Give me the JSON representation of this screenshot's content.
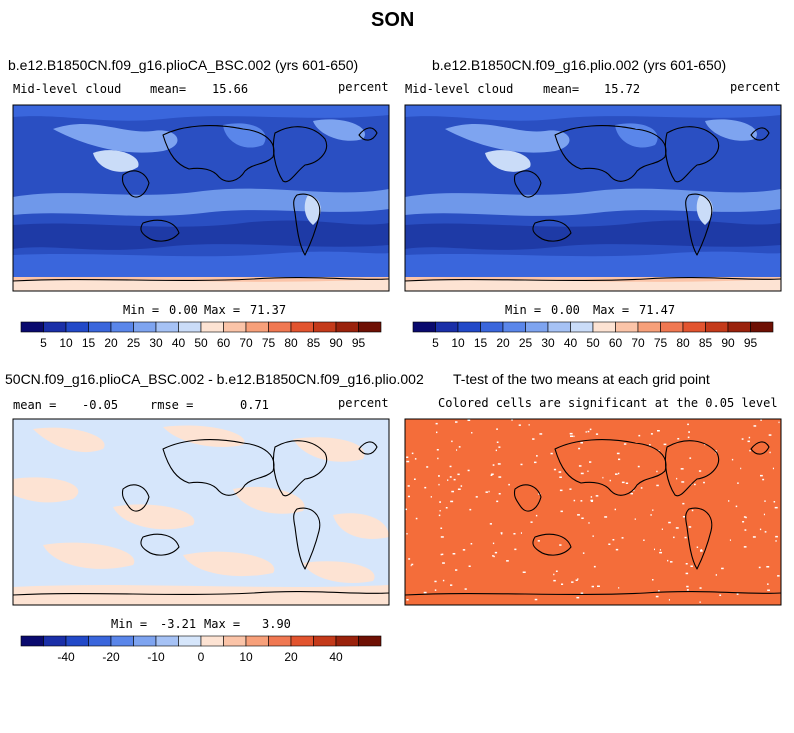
{
  "season": "SON",
  "panels": {
    "top_left": {
      "title": "b.e12.B1850CN.f09_g16.plioCA_BSC.002 (yrs 601-650)",
      "variable": "Mid-level cloud",
      "mean_label": "mean=",
      "mean_value": "15.66",
      "units": "percent",
      "min_label": "Min =",
      "min_value": "0.00",
      "max_label": "Max =",
      "max_value": "71.37"
    },
    "top_right": {
      "title": "b.e12.B1850CN.f09_g16.plio.002 (yrs 601-650)",
      "variable": "Mid-level cloud",
      "mean_label": "mean=",
      "mean_value": "15.72",
      "units": "percent",
      "min_label": "Min =",
      "min_value": "0.00",
      "max_label": "Max =",
      "max_value": "71.47"
    },
    "bottom_left": {
      "title": "50CN.f09_g16.plioCA_BSC.002 - b.e12.B1850CN.f09_g16.plio.002",
      "mean_label": "mean =",
      "mean_value": "-0.05",
      "rmse_label": "rmse =",
      "rmse_value": "0.71",
      "units": "percent",
      "min_label": "Min =",
      "min_value": "-3.21",
      "max_label": "Max =",
      "max_value": "3.90"
    },
    "bottom_right": {
      "title": "T-test of the two means at each grid point",
      "subtitle": "Colored cells are significant at the 0.05 level"
    }
  },
  "colorbars": {
    "abs": {
      "colors": [
        "#0a0a6e",
        "#1a2fa8",
        "#2249c8",
        "#3a66dc",
        "#5a86ea",
        "#7ea4f0",
        "#a6c2f5",
        "#cadcf8",
        "#fde3d3",
        "#fbc4a8",
        "#f7a07a",
        "#f07852",
        "#e2542f",
        "#c43a1a",
        "#9a220c",
        "#6e1004"
      ],
      "labels": [
        "5",
        "10",
        "15",
        "20",
        "25",
        "30",
        "40",
        "50",
        "60",
        "70",
        "75",
        "80",
        "85",
        "90",
        "95"
      ]
    },
    "diff": {
      "colors": [
        "#0a0a6e",
        "#1a2fa8",
        "#2249c8",
        "#3a66dc",
        "#5a86ea",
        "#7ea4f0",
        "#a6c2f5",
        "#d6e6fb",
        "#fde3d3",
        "#fbc4a8",
        "#f7a07a",
        "#f07852",
        "#e2542f",
        "#c43a1a",
        "#9a220c",
        "#6e1004"
      ],
      "labels": [
        "-40",
        "-20",
        "-10",
        "0",
        "10",
        "20",
        "40"
      ]
    }
  },
  "colors": {
    "ocean_deep": "#1e3aa6",
    "ocean_mid": "#2a4fc2",
    "band_light": "#6f98ea",
    "diff_blue": "#d6e6fb",
    "diff_peach": "#fde3d3",
    "ttest_fill": "#f46d3a"
  }
}
